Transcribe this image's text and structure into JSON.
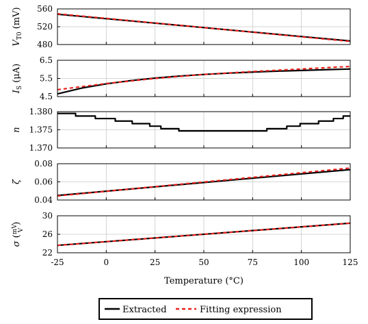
{
  "chart_data": {
    "type": "line",
    "x_domain": [
      -25,
      125
    ],
    "x_ticks": [
      -25,
      0,
      25,
      50,
      75,
      100,
      125
    ],
    "xlabel": "Temperature (°C)",
    "legend": {
      "placement": "bottom-center",
      "entries": [
        {
          "label": "Extracted",
          "color": "#000000",
          "style": "solid"
        },
        {
          "label": "Fitting expression",
          "color": "#e8201c",
          "style": "dashed"
        }
      ]
    },
    "panels": [
      {
        "id": "vt0",
        "ylabel_main": "V",
        "ylabel_sub": "T0",
        "ylabel_unit": "(mV)",
        "ylim": [
          480,
          560
        ],
        "yticks": [
          "560",
          "520",
          "480"
        ],
        "ytick_values": [
          560,
          520,
          480
        ],
        "series": [
          {
            "name": "Extracted",
            "x": [
              -25,
              0,
              25,
              50,
              75,
              100,
              125
            ],
            "y": [
              548,
              538,
              528,
              518,
              508,
              498,
              488
            ]
          },
          {
            "name": "Fitting expression",
            "x": [
              -25,
              125
            ],
            "y": [
              549,
              487
            ]
          }
        ]
      },
      {
        "id": "is",
        "ylabel_main": "I",
        "ylabel_sub": "S",
        "ylabel_unit": "(μA)",
        "ylim": [
          4.5,
          6.5
        ],
        "yticks": [
          "6.5",
          "5.5",
          "4.5"
        ],
        "ytick_values": [
          6.5,
          5.5,
          4.5
        ],
        "series": [
          {
            "name": "Extracted",
            "x": [
              -25,
              -12.5,
              0,
              12.5,
              25,
              37.5,
              50,
              62.5,
              75,
              87.5,
              100,
              112.5,
              125
            ],
            "y": [
              4.65,
              4.97,
              5.2,
              5.38,
              5.52,
              5.63,
              5.72,
              5.79,
              5.85,
              5.9,
              5.94,
              5.98,
              6.02
            ]
          },
          {
            "name": "Fitting expression",
            "x": [
              -25,
              0,
              25,
              50,
              75,
              100,
              125
            ],
            "y": [
              4.88,
              5.22,
              5.5,
              5.72,
              5.88,
              6.02,
              6.16
            ]
          }
        ]
      },
      {
        "id": "n",
        "ylabel_main": "n",
        "ylim": [
          1.37,
          1.38
        ],
        "yticks": [
          "1.380",
          "1.375",
          "1.370"
        ],
        "ytick_values": [
          1.38,
          1.375,
          1.37
        ],
        "step": true,
        "series": [
          {
            "name": "Extracted",
            "x": [
              -25,
              -15.7,
              -5.6,
              4.6,
              13.3,
              22.3,
              28,
              37.2,
              82.3,
              92.5,
              99.3,
              108.8,
              116.4,
              121.4,
              125
            ],
            "y": [
              1.3795,
              1.3788,
              1.3781,
              1.3774,
              1.3767,
              1.376,
              1.3753,
              1.3747,
              1.3753,
              1.376,
              1.3767,
              1.3774,
              1.3781,
              1.3788,
              1.3788
            ]
          }
        ]
      },
      {
        "id": "zeta",
        "ylabel_main": "ζ",
        "ylim": [
          0.04,
          0.08
        ],
        "yticks": [
          "0.08",
          "0.06",
          "0.04"
        ],
        "ytick_values": [
          0.08,
          0.06,
          0.04
        ],
        "series": [
          {
            "name": "Extracted",
            "x": [
              -25,
              125
            ],
            "y": [
              0.045,
              0.0735
            ]
          },
          {
            "name": "Fitting expression",
            "x": [
              -25,
              125
            ],
            "y": [
              0.0445,
              0.0752
            ]
          }
        ]
      },
      {
        "id": "sigma",
        "ylabel_main": "σ",
        "ylabel_unit_num": "mV",
        "ylabel_unit_den": "V",
        "ylim": [
          22,
          30
        ],
        "yticks": [
          "30",
          "26",
          "22"
        ],
        "ytick_values": [
          30,
          26,
          22
        ],
        "series": [
          {
            "name": "Extracted",
            "x": [
              -25,
              125
            ],
            "y": [
              23.6,
              28.4
            ]
          },
          {
            "name": "Fitting expression",
            "x": [
              -25,
              125
            ],
            "y": [
              23.6,
              28.4
            ]
          }
        ]
      }
    ]
  }
}
